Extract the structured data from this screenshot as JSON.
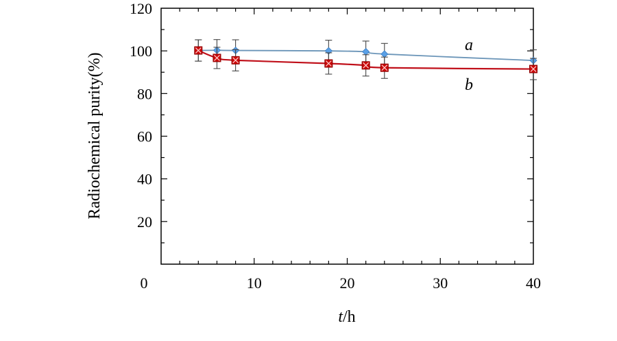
{
  "chart_data": {
    "type": "line",
    "xlabel_italic": "t",
    "xlabel_rest": "/h",
    "ylabel": "Radiochemical purity(%)",
    "xlim": [
      0,
      40
    ],
    "ylim": [
      0,
      120
    ],
    "x_ticks": [
      10,
      20,
      30,
      40
    ],
    "y_ticks": [
      20,
      40,
      60,
      80,
      100,
      120
    ],
    "origin_label": "0",
    "grid": false,
    "legend": "inline labels near line ends",
    "series": [
      {
        "label": "a",
        "color": "#6b95b8",
        "marker": "diamond",
        "marker_color": "#5aa0e6",
        "x": [
          4,
          6,
          8,
          18,
          22,
          24,
          40
        ],
        "y": [
          100.2,
          100.3,
          100.2,
          100.0,
          99.6,
          98.5,
          95.5
        ],
        "error": [
          5.0,
          5.0,
          5.0,
          5.0,
          5.0,
          5.0,
          5.0
        ]
      },
      {
        "label": "b",
        "color": "#c0101a",
        "marker": "square-x",
        "marker_color": "#cc0a0a",
        "x": [
          4,
          6,
          8,
          18,
          22,
          24,
          40
        ],
        "y": [
          100.2,
          96.7,
          95.6,
          94.1,
          93.2,
          92.1,
          91.5
        ],
        "error": [
          5.0,
          5.0,
          5.0,
          5.0,
          5.0,
          5.0,
          5.0
        ]
      }
    ]
  }
}
